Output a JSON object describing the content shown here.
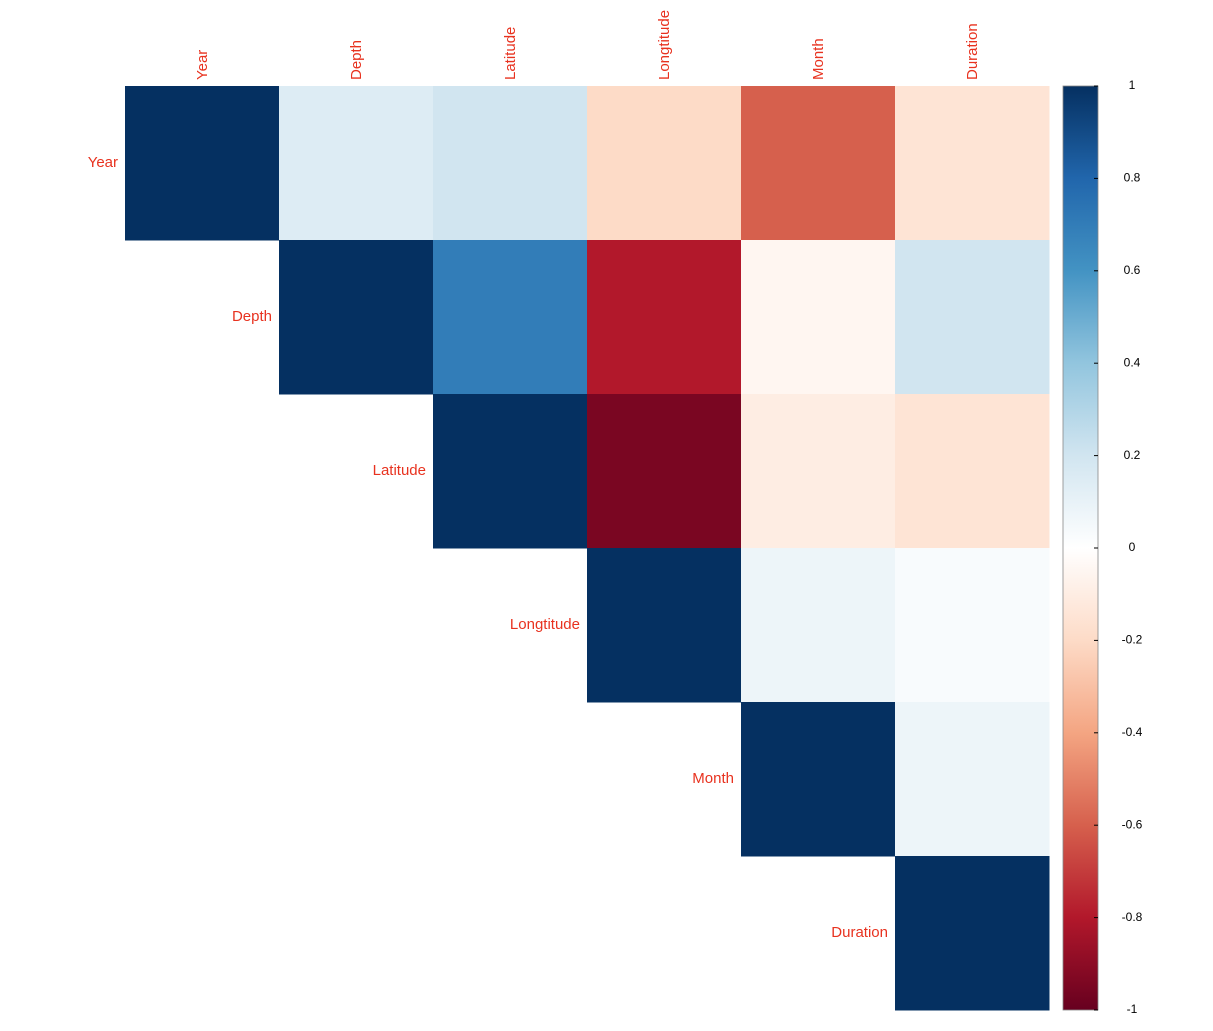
{
  "chart_data": {
    "type": "heatmap",
    "categories": [
      "Year",
      "Depth",
      "Latitude",
      "Longtitude",
      "Month",
      "Duration"
    ],
    "values": [
      [
        1,
        0.15,
        0.2,
        -0.2,
        -0.6,
        -0.15
      ],
      [
        null,
        1,
        0.7,
        -0.8,
        -0.05,
        0.2
      ],
      [
        null,
        null,
        1,
        -0.95,
        -0.1,
        -0.15
      ],
      [
        null,
        null,
        null,
        1,
        0.08,
        0.03
      ],
      [
        null,
        null,
        null,
        null,
        1,
        0.08
      ],
      [
        null,
        null,
        null,
        null,
        null,
        1
      ]
    ],
    "label_color": "#e8321f",
    "colormap": [
      "#67001F",
      "#B2182B",
      "#D6604D",
      "#F4A582",
      "#FDDBC7",
      "#FFFFFF",
      "#D1E5F0",
      "#92C5DE",
      "#4393C3",
      "#2166AC",
      "#053061"
    ],
    "zlim": [
      -1,
      1
    ],
    "zticks": [
      1,
      0.8,
      0.6,
      0.4,
      0.2,
      0,
      -0.2,
      -0.4,
      -0.6,
      -0.8,
      -1
    ]
  }
}
